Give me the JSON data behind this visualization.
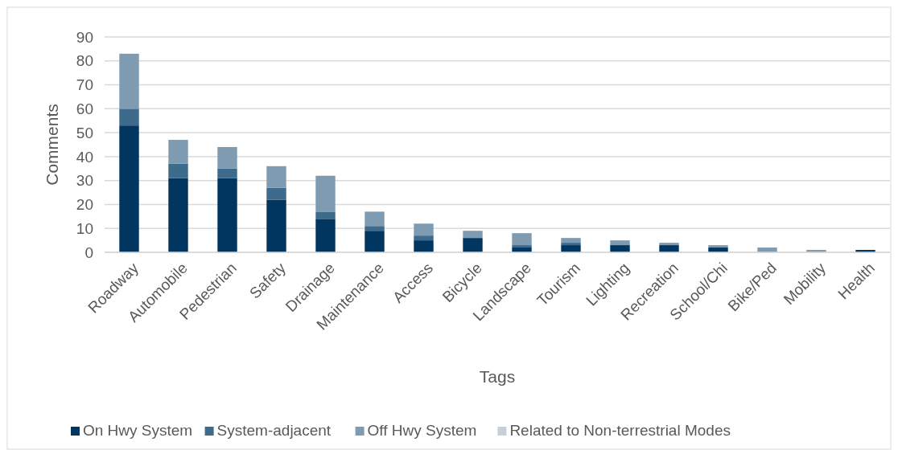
{
  "chart_data": {
    "type": "bar",
    "stacked": true,
    "xlabel": "Tags",
    "ylabel": "Comments",
    "categories": [
      "Roadway",
      "Automobile",
      "Pedestrian",
      "Safety",
      "Drainage",
      "Maintenance",
      "Access",
      "Bicycle",
      "Landscape",
      "Tourism",
      "Lighting",
      "Recreation",
      "School/Chi",
      "Bike/Ped",
      "Mobility",
      "Health"
    ],
    "series": [
      {
        "name": "On Hwy System",
        "color": "#003660",
        "values": [
          53,
          31,
          31,
          22,
          14,
          9,
          5,
          6,
          2,
          3,
          3,
          3,
          2,
          0,
          0,
          1
        ]
      },
      {
        "name": "System-adjacent",
        "color": "#3e6a8c",
        "values": [
          7,
          6,
          4,
          5,
          3,
          2,
          2,
          0,
          1,
          1,
          0,
          0,
          0,
          0,
          0,
          0
        ]
      },
      {
        "name": "Off Hwy System",
        "color": "#7f9bb1",
        "values": [
          23,
          10,
          9,
          9,
          15,
          6,
          5,
          3,
          5,
          2,
          2,
          1,
          1,
          2,
          1,
          0
        ]
      },
      {
        "name": "Related to Non-terrestrial Modes",
        "color": "#c5d0da",
        "values": [
          0,
          0,
          0,
          0,
          0,
          0,
          0,
          0,
          0,
          0,
          0,
          0,
          0,
          0,
          0,
          0
        ]
      }
    ],
    "ylim": [
      0,
      90
    ],
    "yticks": [
      0,
      10,
      20,
      30,
      40,
      50,
      60,
      70,
      80,
      90
    ],
    "grid": "y",
    "legend": "bottom"
  }
}
